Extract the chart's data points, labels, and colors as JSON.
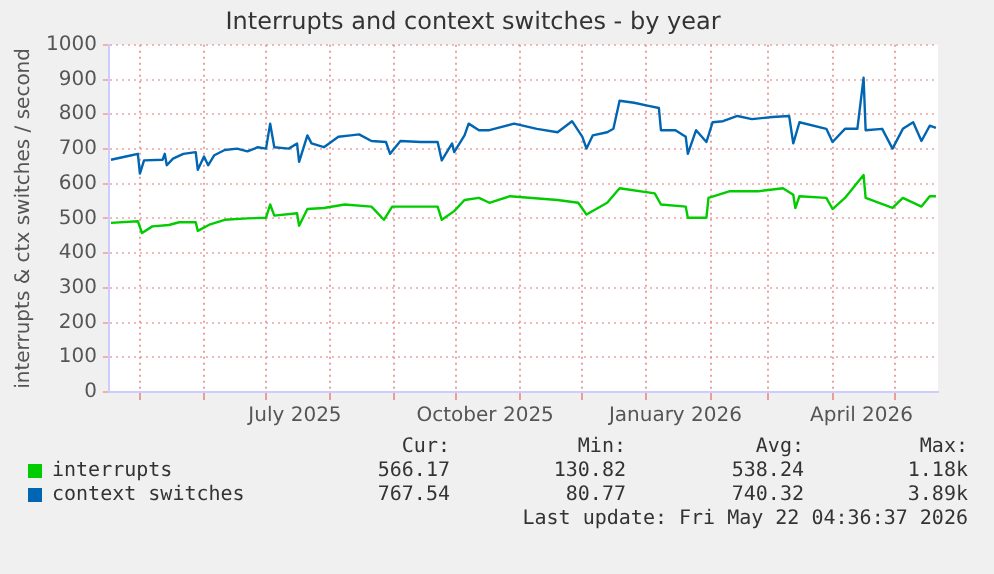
{
  "chart_data": {
    "type": "line",
    "title": "Interrupts and context switches - by year",
    "ylabel": "interrupts & ctx switches / second",
    "xlim": [
      "2025-04-16",
      "2026-05-22"
    ],
    "xticks": [
      {
        "value": "2025-05-01",
        "label": null
      },
      {
        "value": "2025-06-01",
        "label": null
      },
      {
        "value": "2025-07-01",
        "label": null
      },
      {
        "value": "2025-07-15",
        "label": "July 2025"
      },
      {
        "value": "2025-08-01",
        "label": null
      },
      {
        "value": "2025-09-01",
        "label": null
      },
      {
        "value": "2025-10-01",
        "label": null
      },
      {
        "value": "2025-10-15",
        "label": "October 2025"
      },
      {
        "value": "2025-11-01",
        "label": null
      },
      {
        "value": "2025-12-01",
        "label": null
      },
      {
        "value": "2026-01-01",
        "label": null
      },
      {
        "value": "2026-01-15",
        "label": "January 2026"
      },
      {
        "value": "2026-02-01",
        "label": null
      },
      {
        "value": "2026-03-01",
        "label": null
      },
      {
        "value": "2026-04-01",
        "label": null
      },
      {
        "value": "2026-04-15",
        "label": "April 2026"
      },
      {
        "value": "2026-05-01",
        "label": null
      }
    ],
    "ylim": [
      0,
      1000
    ],
    "yticks": [
      0,
      100,
      200,
      300,
      400,
      500,
      600,
      700,
      800,
      900,
      1000
    ],
    "grid": true,
    "legend": "bottom left",
    "marker": "none",
    "line_style": "solid",
    "series": [
      {
        "name": "interrupts",
        "color": "#00cc00",
        "x": [
          "2025-04-17",
          "2025-04-30",
          "2025-05-02",
          "2025-05-07",
          "2025-05-15",
          "2025-05-20",
          "2025-05-28",
          "2025-05-29",
          "2025-06-04",
          "2025-06-11",
          "2025-06-22",
          "2025-07-01",
          "2025-07-03",
          "2025-07-05",
          "2025-07-16",
          "2025-07-17",
          "2025-07-21",
          "2025-07-29",
          "2025-08-08",
          "2025-08-21",
          "2025-08-27",
          "2025-08-31",
          "2025-09-22",
          "2025-09-24",
          "2025-09-30",
          "2025-10-05",
          "2025-10-12",
          "2025-10-17",
          "2025-10-27",
          "2025-11-19",
          "2025-11-29",
          "2025-12-03",
          "2025-12-13",
          "2025-12-19",
          "2026-01-05",
          "2026-01-08",
          "2026-01-20",
          "2026-01-21",
          "2026-01-30",
          "2026-01-31",
          "2026-02-10",
          "2026-02-24",
          "2026-03-08",
          "2026-03-13",
          "2026-03-14",
          "2026-03-16",
          "2026-03-29",
          "2026-04-01",
          "2026-04-07",
          "2026-04-16",
          "2026-04-17",
          "2026-04-30",
          "2026-05-05",
          "2026-05-14",
          "2026-05-18",
          "2026-05-21"
        ],
        "values": [
          487,
          492,
          458,
          477,
          481,
          489,
          489,
          464,
          483,
          496,
          500,
          502,
          540,
          508,
          515,
          479,
          527,
          530,
          540,
          534,
          496,
          534,
          534,
          496,
          521,
          553,
          559,
          545,
          564,
          553,
          545,
          511,
          545,
          587,
          572,
          540,
          534,
          502,
          502,
          559,
          578,
          578,
          587,
          568,
          530,
          564,
          559,
          527,
          559,
          625,
          559,
          530,
          559,
          534,
          564,
          564
        ]
      },
      {
        "name": "context switches",
        "color": "#0066b3",
        "x": [
          "2025-04-17",
          "2025-04-27",
          "2025-04-30",
          "2025-05-01",
          "2025-05-03",
          "2025-05-12",
          "2025-05-13",
          "2025-05-14",
          "2025-05-17",
          "2025-05-22",
          "2025-05-28",
          "2025-05-29",
          "2025-06-01",
          "2025-06-03",
          "2025-06-06",
          "2025-06-11",
          "2025-06-17",
          "2025-06-22",
          "2025-06-27",
          "2025-07-01",
          "2025-07-03",
          "2025-07-05",
          "2025-07-12",
          "2025-07-16",
          "2025-07-17",
          "2025-07-21",
          "2025-07-23",
          "2025-07-29",
          "2025-08-05",
          "2025-08-11",
          "2025-08-15",
          "2025-08-21",
          "2025-08-28",
          "2025-08-30",
          "2025-09-04",
          "2025-09-14",
          "2025-09-22",
          "2025-09-24",
          "2025-09-29",
          "2025-09-30",
          "2025-10-05",
          "2025-10-07",
          "2025-10-12",
          "2025-10-17",
          "2025-10-29",
          "2025-11-09",
          "2025-11-19",
          "2025-11-26",
          "2025-12-01",
          "2025-12-03",
          "2025-12-06",
          "2025-12-13",
          "2025-12-16",
          "2025-12-19",
          "2025-12-26",
          "2026-01-02",
          "2026-01-07",
          "2026-01-08",
          "2026-01-15",
          "2026-01-20",
          "2026-01-21",
          "2026-01-25",
          "2026-01-30",
          "2026-02-02",
          "2026-02-07",
          "2026-02-14",
          "2026-02-21",
          "2026-03-03",
          "2026-03-11",
          "2026-03-13",
          "2026-03-16",
          "2026-03-29",
          "2026-04-01",
          "2026-04-07",
          "2026-04-13",
          "2026-04-16",
          "2026-04-17",
          "2026-04-25",
          "2026-04-30",
          "2026-05-05",
          "2026-05-10",
          "2026-05-14",
          "2026-05-18",
          "2026-05-21"
        ],
        "values": [
          669,
          682,
          686,
          629,
          667,
          669,
          686,
          653,
          672,
          686,
          691,
          640,
          678,
          653,
          682,
          697,
          701,
          693,
          705,
          701,
          773,
          705,
          701,
          716,
          663,
          739,
          716,
          705,
          735,
          739,
          742,
          723,
          720,
          686,
          723,
          720,
          720,
          667,
          716,
          691,
          739,
          773,
          754,
          754,
          773,
          758,
          748,
          780,
          735,
          701,
          739,
          748,
          758,
          839,
          833,
          824,
          818,
          754,
          754,
          735,
          686,
          754,
          720,
          777,
          780,
          795,
          786,
          792,
          795,
          716,
          777,
          758,
          720,
          758,
          758,
          905,
          754,
          758,
          701,
          758,
          777,
          723,
          767,
          761
        ]
      }
    ],
    "annotations": [
      "Cur:",
      "Min:",
      "Avg:",
      "Max:",
      "566.17",
      "130.82",
      "538.24",
      "1.18k",
      "767.54",
      "80.77",
      "740.32",
      "3.89k",
      "Last update: Fri May 22 04:36:37 2026"
    ]
  }
}
